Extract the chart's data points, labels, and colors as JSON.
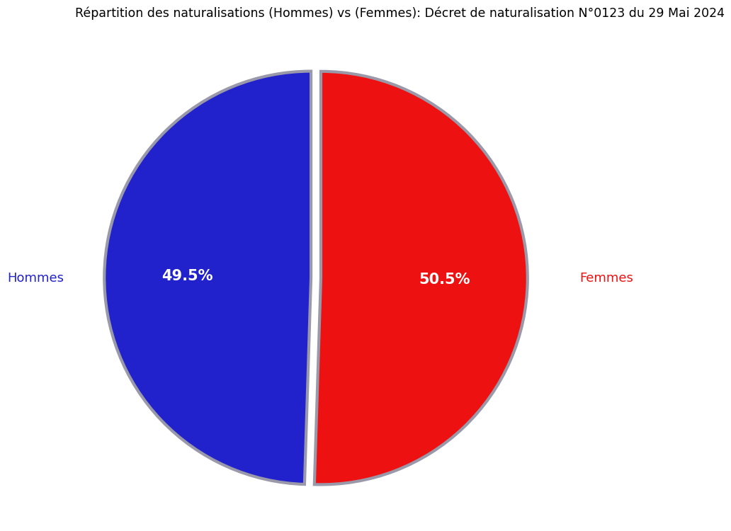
{
  "title": "Répartition des naturalisations (Hommes) vs (Femmes): Décret de naturalisation N°0123 du 29 Mai 2024",
  "labels": [
    "Hommes",
    "Femmes"
  ],
  "values": [
    49.5,
    50.5
  ],
  "colors": [
    "#2222CC",
    "#EE1111"
  ],
  "explode": [
    0.05,
    0.0
  ],
  "pct_labels": [
    "49.5%",
    "50.5%"
  ],
  "label_colors": [
    "#2222CC",
    "#EE1111"
  ],
  "pct_text_color": "white",
  "wedge_edgecolor": "#9999AA",
  "wedge_linewidth": 3,
  "title_fontsize": 12.5,
  "label_fontsize": 13,
  "pct_fontsize": 15,
  "background_color": "#ffffff"
}
